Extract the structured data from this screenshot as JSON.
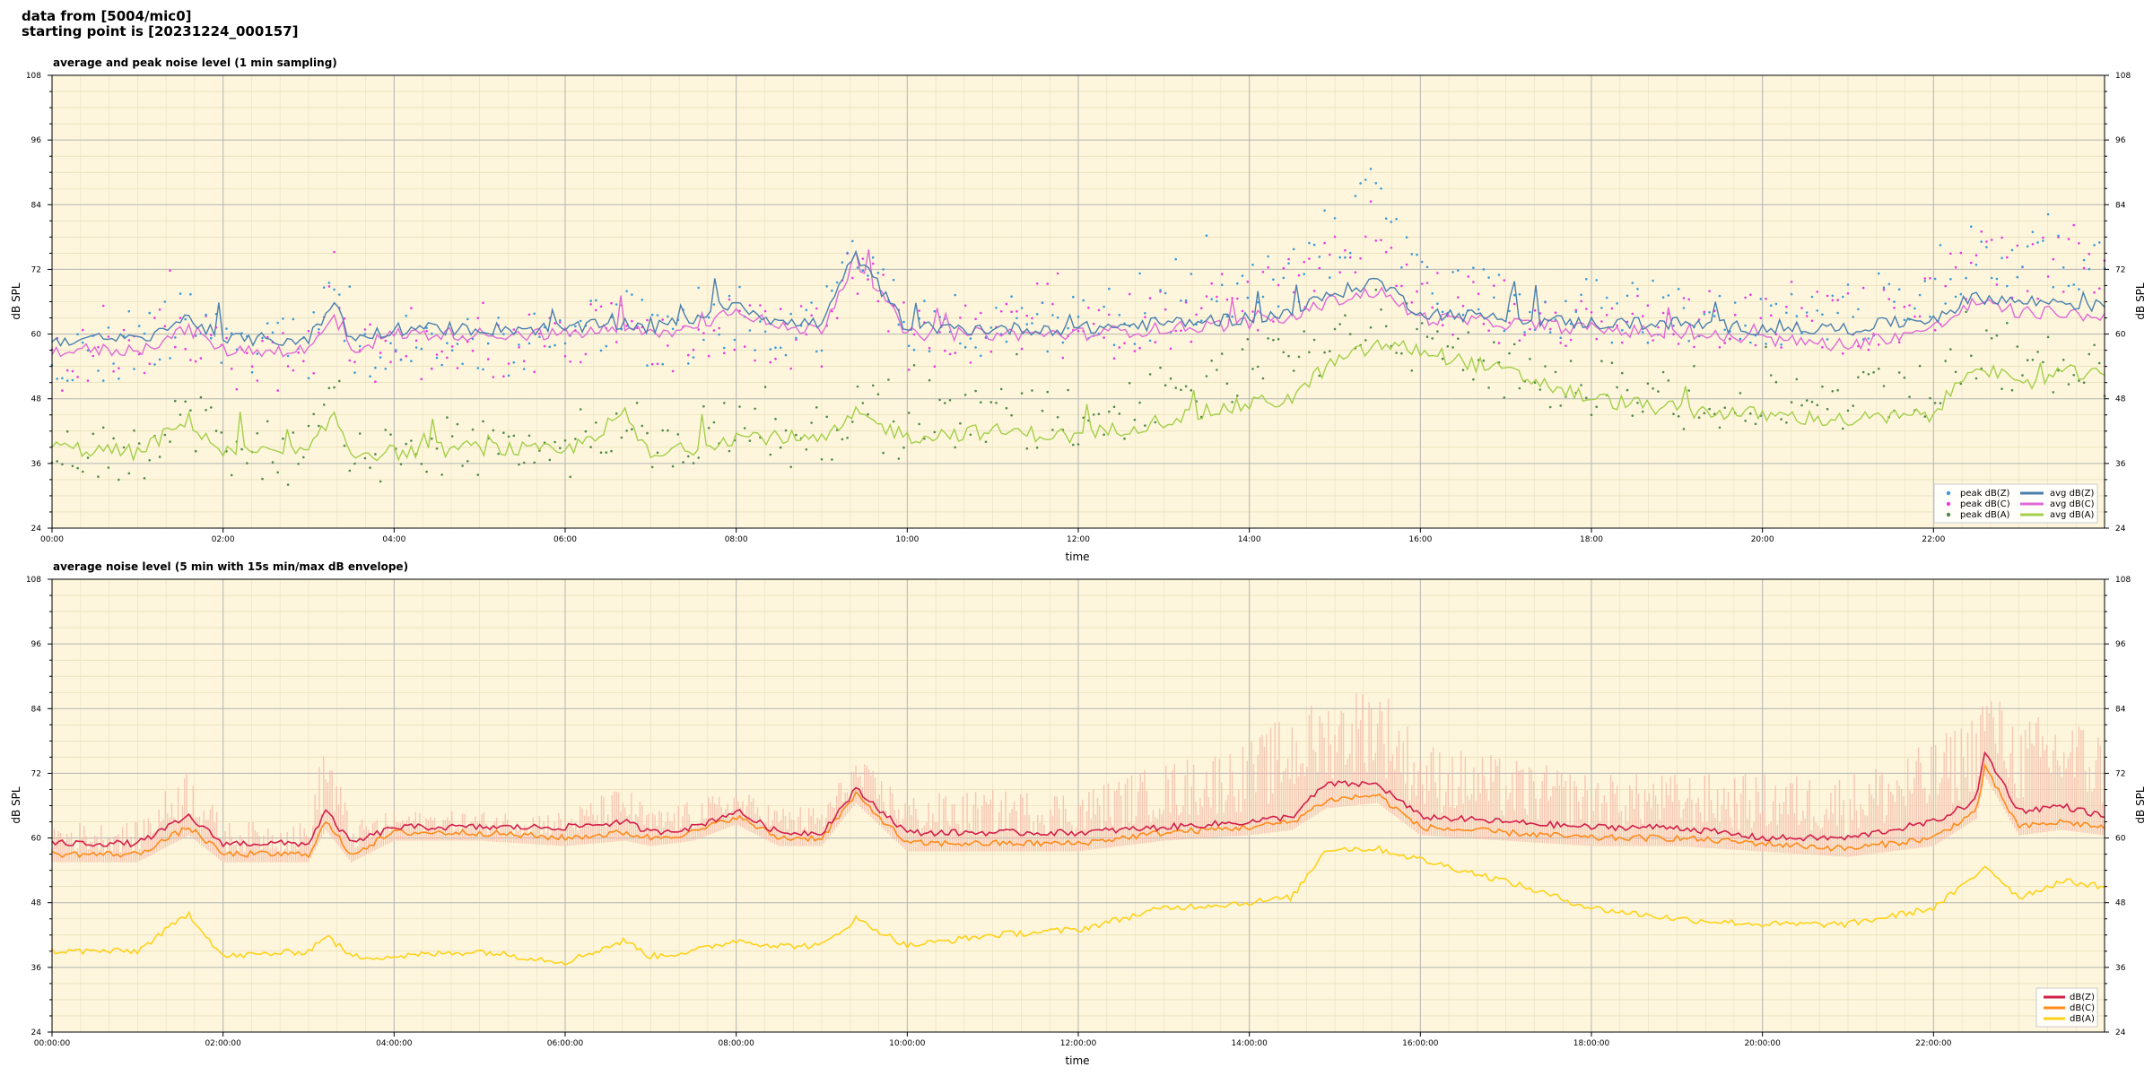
{
  "header": {
    "line1": "data from [5004/mic0]",
    "line2": "starting point is [20231224_000157]"
  },
  "colors": {
    "plot_bg": "#fdf6dc",
    "peak_z": "#3a9bd9",
    "peak_c": "#e83be0",
    "peak_a": "#4f8a4a",
    "avg_z": "#4a7fae",
    "avg_c": "#e06ad6",
    "avg_a": "#a4cf4a",
    "env_z": "#d21f4a",
    "env_c": "#ff8c1a",
    "env_a": "#ffd21a",
    "envelope_fill": "#f4b7a7"
  },
  "chart_data": [
    {
      "type": "line",
      "title": "average and peak noise level (1 min sampling)",
      "xlabel": "time",
      "ylabel": "dB SPL",
      "x_unit": "hour of day",
      "xlim": [
        0,
        24
      ],
      "ylim": [
        24,
        108
      ],
      "yticks": [
        "24",
        "36",
        "48",
        "60",
        "72",
        "84",
        "96",
        "108"
      ],
      "xticks": [
        "00:00",
        "02:00",
        "04:00",
        "06:00",
        "08:00",
        "10:00",
        "12:00",
        "14:00",
        "16:00",
        "18:00",
        "20:00",
        "22:00"
      ],
      "grid": true,
      "legend_position": "lower-right",
      "x": [
        0,
        1,
        1.6,
        2,
        3,
        3.3,
        3.5,
        4,
        5,
        6,
        6.7,
        7,
        7.5,
        8,
        8.5,
        9,
        9.4,
        10,
        11,
        12,
        13,
        14,
        14.5,
        14.9,
        15.5,
        16,
        17,
        18,
        19,
        20,
        21,
        22,
        22.5,
        23,
        23.5,
        24
      ],
      "series": [
        {
          "name": "avg dB(Z)",
          "kind": "line",
          "values": [
            59,
            59,
            63,
            59,
            59,
            66,
            59,
            61,
            61,
            61,
            62,
            61,
            63,
            66,
            62,
            62,
            75,
            61,
            61,
            61,
            62,
            63,
            64,
            67,
            70,
            64,
            63,
            62,
            62,
            61,
            61,
            63,
            67,
            66,
            66,
            65
          ]
        },
        {
          "name": "avg dB(C)",
          "kind": "line",
          "values": [
            57,
            57,
            61,
            57,
            57,
            63,
            57,
            60,
            60,
            60,
            61,
            60,
            61,
            65,
            61,
            61,
            74,
            60,
            60,
            60,
            61,
            62,
            63,
            66,
            68,
            63,
            62,
            61,
            60,
            59,
            58,
            61,
            66,
            64,
            64,
            63
          ]
        },
        {
          "name": "avg dB(A)",
          "kind": "line",
          "values": [
            39,
            38,
            44,
            38,
            38,
            45,
            38,
            38,
            39,
            38,
            45,
            37,
            39,
            41,
            41,
            40,
            45,
            41,
            42,
            41,
            44,
            47,
            48,
            54,
            58,
            57,
            53,
            48,
            46,
            45,
            44,
            45,
            55,
            50,
            53,
            52
          ]
        },
        {
          "name": "peak dB(Z)",
          "kind": "scatter",
          "values": [
            63,
            63,
            69,
            63,
            63,
            80,
            63,
            64,
            64,
            64,
            72,
            64,
            66,
            69,
            66,
            66,
            80,
            67,
            68,
            68,
            71,
            74,
            77,
            79,
            95,
            74,
            72,
            70,
            70,
            70,
            70,
            74,
            82,
            80,
            80,
            78
          ]
        },
        {
          "name": "peak dB(C)",
          "kind": "scatter",
          "values": [
            61,
            61,
            67,
            61,
            61,
            78,
            61,
            63,
            63,
            63,
            71,
            63,
            64,
            68,
            65,
            65,
            79,
            65,
            66,
            66,
            69,
            72,
            75,
            77,
            86,
            72,
            70,
            68,
            68,
            68,
            68,
            72,
            80,
            78,
            78,
            76
          ]
        },
        {
          "name": "peak dB(A)",
          "kind": "scatter",
          "values": [
            44,
            44,
            51,
            44,
            44,
            55,
            43,
            44,
            45,
            44,
            52,
            44,
            46,
            48,
            47,
            47,
            52,
            48,
            50,
            50,
            54,
            58,
            60,
            64,
            70,
            64,
            60,
            56,
            54,
            54,
            53,
            55,
            62,
            60,
            60,
            58
          ]
        }
      ]
    },
    {
      "type": "line",
      "title": "average noise level (5 min with 15s min/max dB envelope)",
      "xlabel": "time",
      "ylabel": "dB SPL",
      "x_unit": "hour of day",
      "xlim": [
        0,
        24
      ],
      "ylim": [
        24,
        108
      ],
      "yticks": [
        "24",
        "36",
        "48",
        "60",
        "72",
        "84",
        "96",
        "108"
      ],
      "xticks": [
        "00:00:00",
        "02:00:00",
        "04:00:00",
        "06:00:00",
        "08:00:00",
        "10:00:00",
        "12:00:00",
        "14:00:00",
        "16:00:00",
        "18:00:00",
        "20:00:00",
        "22:00:00"
      ],
      "grid": true,
      "legend_position": "lower-right",
      "x": [
        0,
        1,
        1.6,
        2,
        3,
        3.2,
        3.5,
        4,
        5,
        6,
        6.7,
        7,
        7.5,
        8,
        8.5,
        9,
        9.4,
        10,
        11,
        12,
        13,
        14,
        14.5,
        14.9,
        15.5,
        16,
        17,
        18,
        19,
        20,
        21,
        22,
        22.5,
        22.6,
        23,
        23.5,
        24
      ],
      "series": [
        {
          "name": "dB(Z)",
          "values": [
            59,
            59,
            64,
            59,
            59,
            65,
            59,
            62,
            62,
            62,
            63,
            61,
            62,
            65,
            61,
            61,
            69,
            61,
            61,
            61,
            62,
            63,
            64,
            70,
            70,
            64,
            63,
            62,
            62,
            60,
            60,
            63,
            67,
            76,
            65,
            66,
            64
          ]
        },
        {
          "name": "dB(C)",
          "values": [
            57,
            57,
            62,
            57,
            57,
            63,
            57,
            61,
            61,
            60,
            61,
            60,
            61,
            64,
            60,
            60,
            68,
            59,
            59,
            59,
            61,
            62,
            63,
            67,
            68,
            62,
            61,
            60,
            60,
            59,
            58,
            60,
            65,
            73,
            62,
            63,
            62
          ]
        },
        {
          "name": "dB(A)",
          "values": [
            39,
            39,
            46,
            38,
            39,
            42,
            38,
            38,
            39,
            37,
            41,
            38,
            39,
            41,
            40,
            40,
            45,
            40,
            42,
            43,
            47,
            48,
            49,
            58,
            58,
            56,
            52,
            47,
            45,
            44,
            44,
            47,
            53,
            55,
            49,
            52,
            51
          ]
        },
        {
          "name": "max envelope",
          "values": [
            63,
            63,
            74,
            63,
            63,
            80,
            63,
            65,
            65,
            65,
            70,
            65,
            67,
            69,
            66,
            66,
            75,
            68,
            69,
            69,
            74,
            78,
            84,
            86,
            90,
            78,
            75,
            72,
            72,
            72,
            72,
            78,
            84,
            89,
            82,
            84,
            80
          ]
        }
      ]
    }
  ],
  "legend1": {
    "peak_z": "peak dB(Z)",
    "peak_c": "peak dB(C)",
    "peak_a": "peak dB(A)",
    "avg_z": "avg dB(Z)",
    "avg_c": "avg dB(C)",
    "avg_a": "avg dB(A)"
  },
  "legend2": {
    "z": "dB(Z)",
    "c": "dB(C)",
    "a": "dB(A)"
  }
}
